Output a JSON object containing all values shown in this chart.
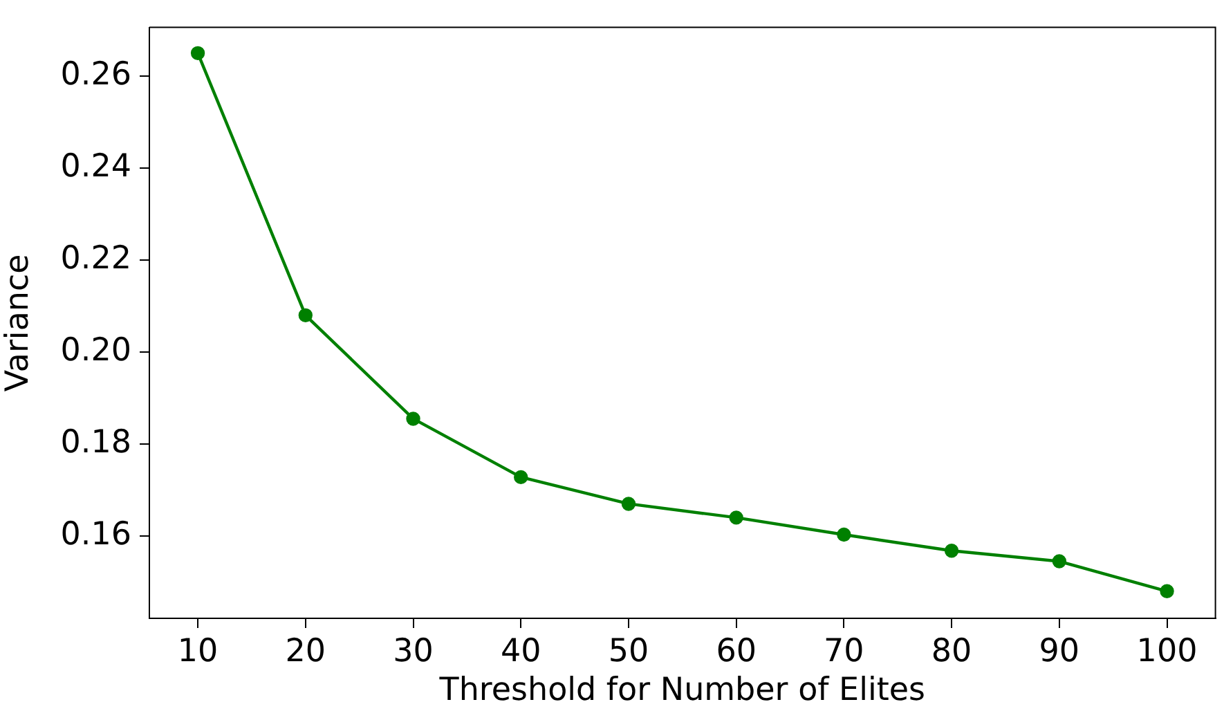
{
  "chart_data": {
    "type": "line",
    "xlabel": "Threshold for Number of Elites",
    "ylabel": "Variance",
    "x": [
      10,
      20,
      30,
      40,
      50,
      60,
      70,
      80,
      90,
      100
    ],
    "series": [
      {
        "color": "#008000",
        "values": [
          0.265,
          0.208,
          0.1855,
          0.1728,
          0.167,
          0.164,
          0.1603,
          0.1568,
          0.1545,
          0.148
        ]
      }
    ],
    "xlim": [
      5.5,
      104.5
    ],
    "xticks": [
      10,
      20,
      30,
      40,
      50,
      60,
      70,
      80,
      90,
      100
    ],
    "ylim": [
      0.1421,
      0.2706
    ],
    "yticks": [
      0.16,
      0.18,
      {
        "value": 0.2,
        "label": "0.20"
      },
      0.22,
      0.24,
      0.26
    ],
    "grid": false,
    "legend": false,
    "marker": "circle",
    "line_style": "solid"
  }
}
